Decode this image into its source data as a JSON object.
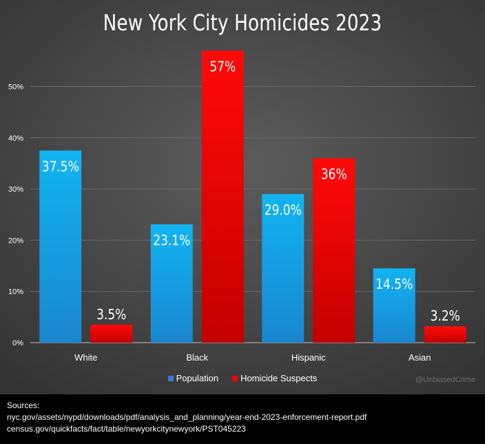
{
  "chart_data": {
    "type": "bar",
    "title": "New York City Homicides 2023",
    "categories": [
      "White",
      "Black",
      "Hispanic",
      "Asian"
    ],
    "series": [
      {
        "name": "Population",
        "values": [
          37.5,
          23.1,
          29.0,
          14.5
        ],
        "labels": [
          "37.5%",
          "23.1%",
          "29.0%",
          "14.5%"
        ],
        "color": "#1aa3e8"
      },
      {
        "name": "Homicide Suspects",
        "values": [
          3.5,
          57,
          36,
          3.2
        ],
        "labels": [
          "3.5%",
          "57%",
          "36%",
          "3.2%"
        ],
        "color": "#ee0000"
      }
    ],
    "yticks": [
      "0%",
      "10%",
      "20%",
      "30%",
      "40%",
      "50%"
    ],
    "ylim": [
      0,
      60
    ],
    "grid": true,
    "legend": "bottom"
  },
  "watermark": "@UnbiasedCrime",
  "sources": {
    "heading": "Sources:",
    "lines": [
      "nyc.gov/assets/nypd/downloads/pdf/analysis_and_planning/year-end-2023-enforcement-report.pdf",
      "census.gov/quickfacts/fact/table/newyorkcitynewyork/PST045223"
    ]
  }
}
